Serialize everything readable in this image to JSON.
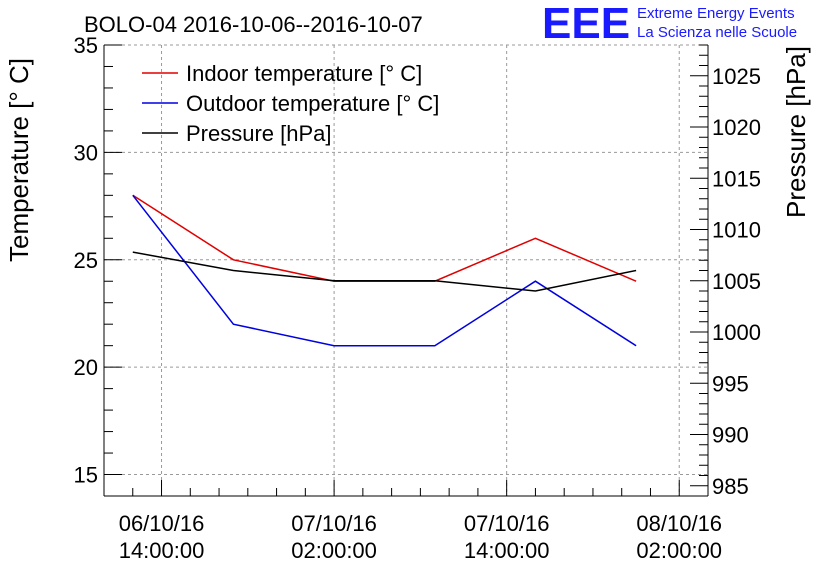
{
  "chart_data": {
    "type": "line",
    "title": "BOLO-04 2016-10-06--2016-10-07",
    "logo": {
      "mark": "EEE",
      "line1": "Extreme Energy Events",
      "line2": "La Scienza nelle Scuole",
      "color": "#1a1aff"
    },
    "x_ticks": [
      {
        "hours": 12,
        "line1": "06/10/16",
        "line2": "14:00:00"
      },
      {
        "hours": 24,
        "line1": "07/10/16",
        "line2": "02:00:00"
      },
      {
        "hours": 36,
        "line1": "07/10/16",
        "line2": "14:00:00"
      },
      {
        "hours": 48,
        "line1": "08/10/16",
        "line2": "02:00:00"
      }
    ],
    "x_minor_every": 2,
    "x_times": [
      "06/10/16 12:00",
      "06/10/16 19:00",
      "07/10/16 02:00",
      "07/10/16 09:00",
      "07/10/16 16:00",
      "07/10/16 23:00"
    ],
    "x_hours": [
      10,
      17,
      24,
      31,
      38,
      45
    ],
    "xlim": [
      8,
      50
    ],
    "y_left": {
      "label": "Temperature [° C]",
      "lim": [
        14,
        35
      ],
      "ticks": [
        15,
        20,
        25,
        30,
        35
      ],
      "minor": 1
    },
    "y_right": {
      "label": "Pressure [hPa]",
      "lim": [
        984,
        1028
      ],
      "ticks": [
        985,
        990,
        995,
        1000,
        1005,
        1010,
        1015,
        1020,
        1025
      ],
      "minor": 1
    },
    "grid": true,
    "legend": "top-left",
    "series": [
      {
        "name": "Indoor temperature [° C]",
        "axis": "left",
        "color": "#e00000",
        "values": [
          28,
          25,
          24,
          24,
          26,
          24
        ]
      },
      {
        "name": "Outdoor temperature [° C]",
        "axis": "left",
        "color": "#0000e0",
        "values": [
          28,
          22,
          21,
          21,
          24,
          21
        ]
      },
      {
        "name": "Pressure [hPa]",
        "axis": "right",
        "color": "#000000",
        "values": [
          1007.8,
          1006.0,
          1005.0,
          1005.0,
          1004.0,
          1006.0
        ]
      }
    ]
  }
}
